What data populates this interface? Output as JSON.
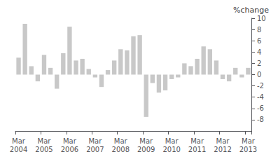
{
  "chart_data": {
    "type": "bar",
    "title": "%change",
    "categories": [
      "Mar\n2004",
      null,
      null,
      null,
      "Mar\n2005",
      null,
      null,
      null,
      "Mar\n2006",
      null,
      null,
      null,
      "Mar\n2007",
      null,
      null,
      null,
      "Mar\n2008",
      null,
      null,
      null,
      "Mar\n2009",
      null,
      null,
      null,
      "Mar\n2010",
      null,
      null,
      null,
      "Mar\n2011",
      null,
      null,
      null,
      "Mar\n2012",
      null,
      null,
      null,
      "Mar\n2013"
    ],
    "values": [
      3.0,
      9.0,
      1.5,
      -1.2,
      3.5,
      1.2,
      -2.5,
      3.8,
      8.5,
      2.5,
      2.8,
      1.0,
      -0.5,
      -2.2,
      0.8,
      2.5,
      4.5,
      4.3,
      6.8,
      7.0,
      -7.5,
      -1.5,
      -3.2,
      -2.8,
      -0.8,
      -0.5,
      2.0,
      1.5,
      2.8,
      5.0,
      4.5,
      2.5,
      -0.8,
      -1.2,
      1.2,
      -0.5,
      1.2
    ],
    "color": "#c8c8c8",
    "ylim": [
      -10,
      10
    ],
    "yticks": [
      -8,
      -6,
      -4,
      -2,
      0,
      2,
      4,
      6,
      8,
      10
    ],
    "grid": false
  }
}
